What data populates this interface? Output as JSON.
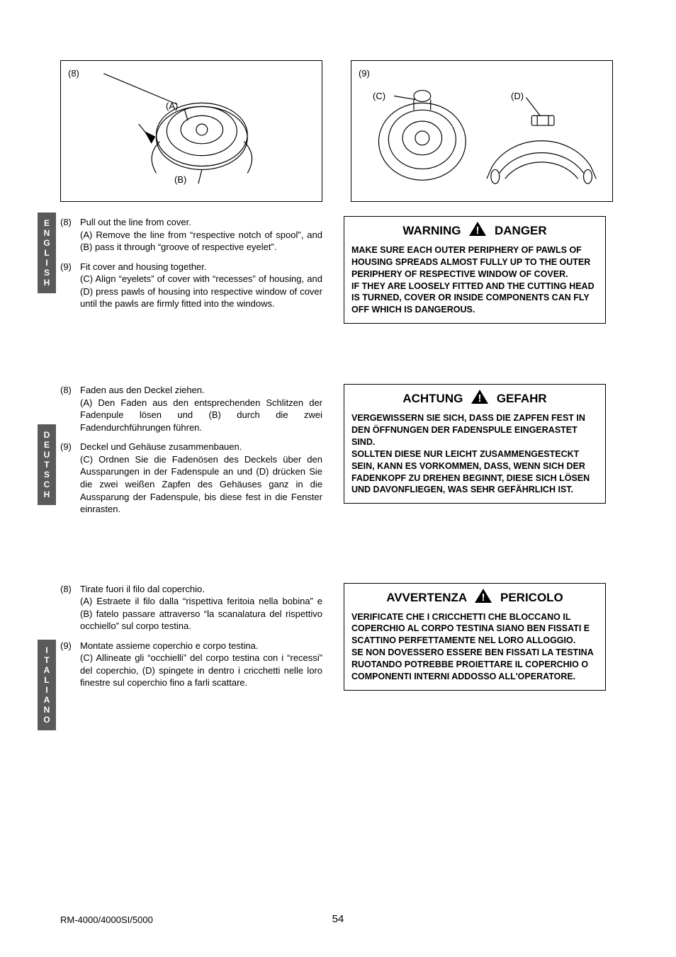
{
  "figures": {
    "left": {
      "num": "(8)",
      "labelA": "(A)",
      "labelB": "(B)"
    },
    "right": {
      "num": "(9)",
      "labelC": "(C)",
      "labelD": "(D)"
    }
  },
  "langs": {
    "en": {
      "tab": "E\nN\nG\nL\nI\nS\nH",
      "tabTop": 265,
      "steps": [
        {
          "n": "(8)",
          "title": "Pull out the line from cover.",
          "body": "(A) Remove the line from “respective notch of spool”, and (B) pass it through “groove of respective eyelet”."
        },
        {
          "n": "(9)",
          "title": "Fit cover and housing together.",
          "body": "(C) Align “eyelets” of cover with “recesses” of housing, and (D) press pawls of housing into respective window of cover until the pawls are firmly fitted into the windows."
        }
      ],
      "warn": {
        "left": "WARNING",
        "right": "DANGER",
        "body": "MAKE SURE EACH OUTER PERIPHERY OF PAWLS OF HOUSING SPREADS ALMOST FULLY UP TO THE OUTER PERIPHERY OF RESPECTIVE WINDOW OF COVER.\nIF THEY ARE LOOSELY FITTED AND THE CUTTING HEAD IS TURNED, COVER OR INSIDE COMPONENTS CAN FLY OFF WHICH IS DANGEROUS."
      }
    },
    "de": {
      "tab": "D\nE\nU\nT\nS\nC\nH",
      "tabTop": 585,
      "steps": [
        {
          "n": "(8)",
          "title": "Faden aus den Deckel ziehen.",
          "body": "(A) Den Faden aus den entsprechenden Schlitzen der Fadenpule lösen und (B) durch die zwei Fadendurchführungen führen."
        },
        {
          "n": "(9)",
          "title": "Deckel und Gehäuse zusammenbauen.",
          "body": "(C) Ordnen Sie die Fadenösen des Deckels über den Aussparungen in der Fadenspule an und (D) drücken Sie die zwei weißen Zapfen des Gehäuses ganz in die Aussparung der Fadenspule, bis diese fest in die Fenster einrasten."
        }
      ],
      "warn": {
        "left": "ACHTUNG",
        "right": "GEFAHR",
        "body": "VERGEWISSERN SIE SICH, DASS DIE ZAPFEN FEST IN DEN ÖFFNUNGEN DER FADENSPULE EINGERASTET SIND.\nSOLLTEN DIESE NUR LEICHT ZUSAMMENGESTECKT SEIN, KANN ES VORKOMMEN, DASS, WENN SICH DER FADENKOPF ZU DREHEN BEGINNT, DIESE SICH LÖSEN UND DAVONFLIEGEN, WAS SEHR GEFÄHRLICH IST."
      }
    },
    "it": {
      "tab": "I\nT\nA\nL\nI\nA\nN\nO",
      "tabTop": 890,
      "steps": [
        {
          "n": "(8)",
          "title": "Tirate fuori il filo dal coperchio.",
          "body": "(A) Estraete il filo dalla “rispettiva feritoia nella bobina” e (B) fatelo passare attraverso “la scanalatura del rispettivo occhiello” sul corpo testina."
        },
        {
          "n": "(9)",
          "title": "Montate assieme coperchio e corpo testina.",
          "body": "(C) Allineate gli “occhielli” del corpo testina con i “recessi” del coperchio, (D) spingete in dentro i cricchetti nelle loro finestre sul coperchio fino a farli scattare."
        }
      ],
      "warn": {
        "left": "AVVERTENZA",
        "right": "PERICOLO",
        "body": "VERIFICATE CHE I CRICCHETTI CHE BLOCCANO IL COPERCHIO AL CORPO TESTINA SIANO BEN FISSATI E SCATTINO PERFETTAMENTE NEL LORO ALLOGGIO.\nSE NON DOVESSERO ESSERE BEN FISSATI LA TESTINA RUOTANDO POTREBBE PROIETTARE IL COPERCHIO O COMPONENTI INTERNI  ADDOSSO ALL'OPERATORE."
      }
    }
  },
  "footer": {
    "model": "RM-4000/4000SI/5000",
    "page": "54"
  },
  "style": {
    "tabBg": "#5a5a5a",
    "tabFg": "#ffffff",
    "textColor": "#000000",
    "borderColor": "#000000"
  }
}
